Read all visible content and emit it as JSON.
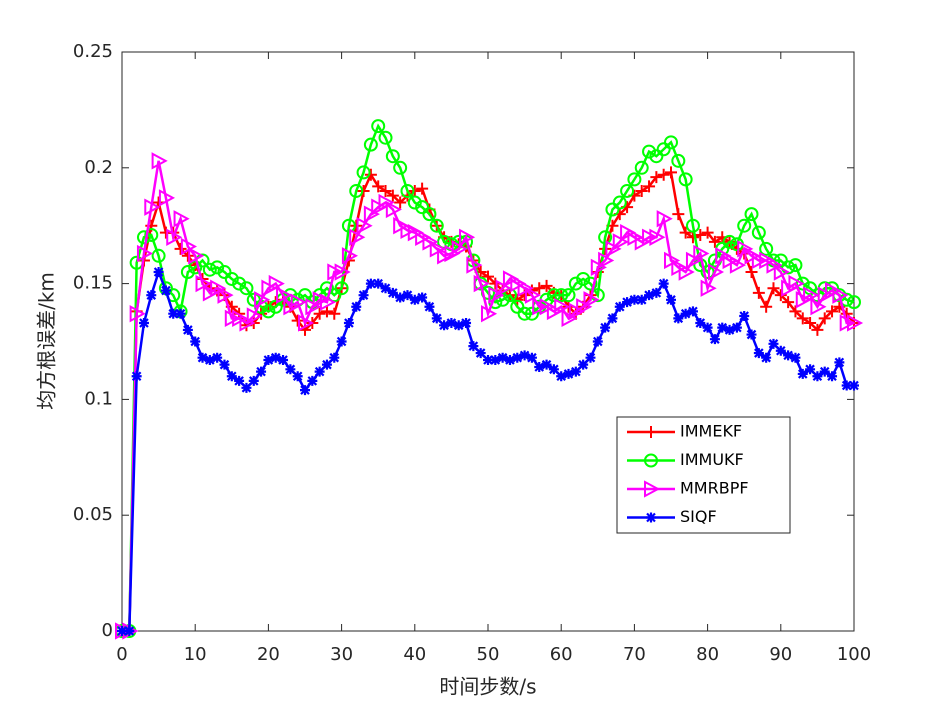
{
  "chart_data": {
    "type": "line",
    "xlabel": "时间步数/s",
    "ylabel": "均方根误差/km",
    "x": [
      0,
      1,
      2,
      3,
      4,
      5,
      6,
      7,
      8,
      9,
      10,
      11,
      12,
      13,
      14,
      15,
      16,
      17,
      18,
      19,
      20,
      21,
      22,
      23,
      24,
      25,
      26,
      27,
      28,
      29,
      30,
      31,
      32,
      33,
      34,
      35,
      36,
      37,
      38,
      39,
      40,
      41,
      42,
      43,
      44,
      45,
      46,
      47,
      48,
      49,
      50,
      51,
      52,
      53,
      54,
      55,
      56,
      57,
      58,
      59,
      60,
      61,
      62,
      63,
      64,
      65,
      66,
      67,
      68,
      69,
      70,
      71,
      72,
      73,
      74,
      75,
      76,
      77,
      78,
      79,
      80,
      81,
      82,
      83,
      84,
      85,
      86,
      87,
      88,
      89,
      90,
      91,
      92,
      93,
      94,
      95,
      96,
      97,
      98,
      99,
      100
    ],
    "xlim": [
      0,
      100
    ],
    "xticks": [
      0,
      10,
      20,
      30,
      40,
      50,
      60,
      70,
      80,
      90,
      100
    ],
    "ylim": [
      0,
      0.25
    ],
    "yticks": [
      0,
      0.05,
      0.1,
      0.15,
      0.2,
      0.25
    ],
    "legend": "inside right",
    "series": [
      {
        "name": "IMMEKF",
        "color": "#ff0000",
        "marker": "+",
        "values": [
          0,
          0,
          0.138,
          0.16,
          0.175,
          0.185,
          0.172,
          0.172,
          0.165,
          0.162,
          0.158,
          0.152,
          0.148,
          0.147,
          0.145,
          0.14,
          0.137,
          0.132,
          0.133,
          0.137,
          0.14,
          0.142,
          0.143,
          0.14,
          0.134,
          0.13,
          0.133,
          0.137,
          0.138,
          0.137,
          0.148,
          0.16,
          0.175,
          0.19,
          0.197,
          0.192,
          0.19,
          0.188,
          0.185,
          0.188,
          0.19,
          0.191,
          0.182,
          0.175,
          0.17,
          0.168,
          0.167,
          0.166,
          0.16,
          0.155,
          0.153,
          0.15,
          0.147,
          0.145,
          0.143,
          0.145,
          0.147,
          0.148,
          0.149,
          0.146,
          0.145,
          0.14,
          0.137,
          0.14,
          0.145,
          0.155,
          0.165,
          0.175,
          0.18,
          0.183,
          0.188,
          0.19,
          0.192,
          0.196,
          0.197,
          0.198,
          0.18,
          0.172,
          0.17,
          0.171,
          0.172,
          0.168,
          0.17,
          0.168,
          0.165,
          0.163,
          0.155,
          0.146,
          0.14,
          0.148,
          0.145,
          0.142,
          0.138,
          0.135,
          0.133,
          0.13,
          0.135,
          0.138,
          0.14,
          0.137,
          0.133
        ]
      },
      {
        "name": "IMMUKF",
        "color": "#00ff00",
        "marker": "o",
        "values": [
          0,
          0,
          0.159,
          0.17,
          0.171,
          0.162,
          0.148,
          0.145,
          0.138,
          0.155,
          0.157,
          0.16,
          0.156,
          0.157,
          0.155,
          0.152,
          0.15,
          0.148,
          0.143,
          0.14,
          0.138,
          0.14,
          0.143,
          0.145,
          0.143,
          0.145,
          0.142,
          0.145,
          0.148,
          0.145,
          0.148,
          0.175,
          0.19,
          0.198,
          0.21,
          0.218,
          0.213,
          0.205,
          0.2,
          0.19,
          0.185,
          0.183,
          0.18,
          0.175,
          0.168,
          0.167,
          0.168,
          0.168,
          0.16,
          0.15,
          0.146,
          0.142,
          0.143,
          0.145,
          0.14,
          0.137,
          0.137,
          0.14,
          0.143,
          0.145,
          0.145,
          0.145,
          0.15,
          0.152,
          0.15,
          0.145,
          0.17,
          0.182,
          0.185,
          0.19,
          0.195,
          0.2,
          0.207,
          0.205,
          0.208,
          0.211,
          0.203,
          0.195,
          0.175,
          0.158,
          0.155,
          0.16,
          0.165,
          0.168,
          0.167,
          0.175,
          0.18,
          0.172,
          0.165,
          0.16,
          0.16,
          0.157,
          0.158,
          0.15,
          0.148,
          0.145,
          0.148,
          0.148,
          0.145,
          0.143,
          0.142
        ]
      },
      {
        "name": "MMRBPF",
        "color": "#ff00ff",
        "marker": ">",
        "values": [
          0,
          0,
          0.137,
          0.163,
          0.183,
          0.203,
          0.187,
          0.17,
          0.178,
          0.166,
          0.162,
          0.15,
          0.146,
          0.148,
          0.145,
          0.135,
          0.135,
          0.133,
          0.136,
          0.143,
          0.148,
          0.15,
          0.145,
          0.14,
          0.142,
          0.133,
          0.14,
          0.143,
          0.142,
          0.155,
          0.155,
          0.162,
          0.17,
          0.175,
          0.18,
          0.183,
          0.185,
          0.182,
          0.175,
          0.173,
          0.172,
          0.17,
          0.168,
          0.165,
          0.162,
          0.163,
          0.165,
          0.17,
          0.158,
          0.15,
          0.137,
          0.145,
          0.148,
          0.152,
          0.15,
          0.148,
          0.145,
          0.14,
          0.14,
          0.138,
          0.14,
          0.135,
          0.138,
          0.14,
          0.143,
          0.157,
          0.16,
          0.165,
          0.168,
          0.172,
          0.17,
          0.168,
          0.17,
          0.17,
          0.178,
          0.16,
          0.157,
          0.155,
          0.16,
          0.163,
          0.148,
          0.155,
          0.162,
          0.16,
          0.158,
          0.165,
          0.162,
          0.16,
          0.16,
          0.158,
          0.155,
          0.148,
          0.15,
          0.143,
          0.145,
          0.14,
          0.145,
          0.147,
          0.145,
          0.133,
          0.133
        ]
      },
      {
        "name": "SIQF",
        "color": "#0000ff",
        "marker": "*",
        "values": [
          0,
          0,
          0.11,
          0.133,
          0.145,
          0.155,
          0.147,
          0.137,
          0.137,
          0.13,
          0.125,
          0.118,
          0.117,
          0.118,
          0.115,
          0.11,
          0.108,
          0.105,
          0.108,
          0.112,
          0.117,
          0.118,
          0.117,
          0.113,
          0.11,
          0.104,
          0.108,
          0.112,
          0.115,
          0.118,
          0.125,
          0.133,
          0.14,
          0.145,
          0.15,
          0.15,
          0.148,
          0.146,
          0.144,
          0.145,
          0.143,
          0.144,
          0.14,
          0.135,
          0.132,
          0.133,
          0.132,
          0.133,
          0.123,
          0.12,
          0.117,
          0.117,
          0.118,
          0.117,
          0.118,
          0.119,
          0.118,
          0.114,
          0.115,
          0.113,
          0.11,
          0.111,
          0.112,
          0.115,
          0.118,
          0.125,
          0.131,
          0.135,
          0.14,
          0.142,
          0.143,
          0.143,
          0.145,
          0.146,
          0.15,
          0.143,
          0.135,
          0.137,
          0.138,
          0.133,
          0.131,
          0.126,
          0.131,
          0.13,
          0.131,
          0.136,
          0.128,
          0.12,
          0.118,
          0.124,
          0.121,
          0.119,
          0.118,
          0.111,
          0.113,
          0.11,
          0.112,
          0.11,
          0.116,
          0.106,
          0.106
        ]
      }
    ]
  }
}
